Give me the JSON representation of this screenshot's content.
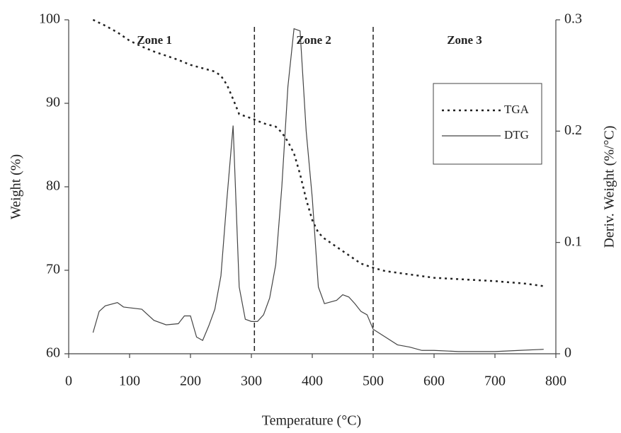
{
  "chart_data": {
    "type": "line",
    "xlabel": "Temperature (°C)",
    "ylabel": "Weight (%)",
    "y2label": "Deriv. Weight (%/°C)",
    "xlim": [
      0,
      800
    ],
    "xticks": [
      0,
      100,
      200,
      300,
      400,
      500,
      600,
      700,
      800
    ],
    "ylim": [
      60,
      100
    ],
    "yticks": [
      60,
      70,
      80,
      90,
      100
    ],
    "y2lim": [
      0,
      0.3
    ],
    "y2ticks": [
      0,
      0.1,
      0.2,
      0.3
    ],
    "legend": "center right",
    "zone_boundaries": [
      305,
      500
    ],
    "zones": [
      "Zone 1",
      "Zone 2",
      "Zone 3"
    ],
    "series": [
      {
        "name": "TGA",
        "color": "#222",
        "dash": true,
        "x": [
          40,
          60,
          80,
          100,
          120,
          140,
          160,
          180,
          200,
          220,
          240,
          250,
          260,
          270,
          280,
          300,
          320,
          340,
          350,
          360,
          370,
          380,
          390,
          400,
          410,
          420,
          440,
          460,
          480,
          500,
          520,
          560,
          600,
          650,
          700,
          750,
          780
        ],
        "values": [
          100,
          99.3,
          98.5,
          97.5,
          96.8,
          96.2,
          95.7,
          95.2,
          94.6,
          94.2,
          93.8,
          93.3,
          92.2,
          90.5,
          88.7,
          88.2,
          87.6,
          87.2,
          86.5,
          85.4,
          84,
          81.5,
          78.5,
          76,
          74.5,
          73.8,
          72.8,
          71.8,
          70.8,
          70.3,
          69.9,
          69.5,
          69.1,
          68.9,
          68.7,
          68.4,
          68.1
        ]
      },
      {
        "name": "DTG",
        "color": "#444",
        "dash": false,
        "axis": "y2",
        "x": [
          40,
          50,
          60,
          80,
          90,
          120,
          140,
          160,
          180,
          190,
          200,
          210,
          220,
          230,
          240,
          250,
          260,
          270,
          280,
          290,
          300,
          310,
          320,
          330,
          340,
          350,
          360,
          370,
          380,
          390,
          400,
          410,
          420,
          440,
          450,
          460,
          470,
          480,
          490,
          500,
          520,
          540,
          560,
          580,
          600,
          640,
          700,
          740,
          780
        ],
        "values": [
          0.019,
          0.038,
          0.043,
          0.046,
          0.042,
          0.04,
          0.03,
          0.026,
          0.027,
          0.034,
          0.034,
          0.015,
          0.012,
          0.025,
          0.04,
          0.07,
          0.14,
          0.205,
          0.06,
          0.031,
          0.029,
          0.029,
          0.035,
          0.05,
          0.08,
          0.15,
          0.24,
          0.292,
          0.29,
          0.2,
          0.14,
          0.06,
          0.045,
          0.048,
          0.053,
          0.051,
          0.045,
          0.038,
          0.035,
          0.022,
          0.015,
          0.008,
          0.006,
          0.003,
          0.003,
          0.002,
          0.002,
          0.003,
          0.004
        ]
      }
    ]
  }
}
